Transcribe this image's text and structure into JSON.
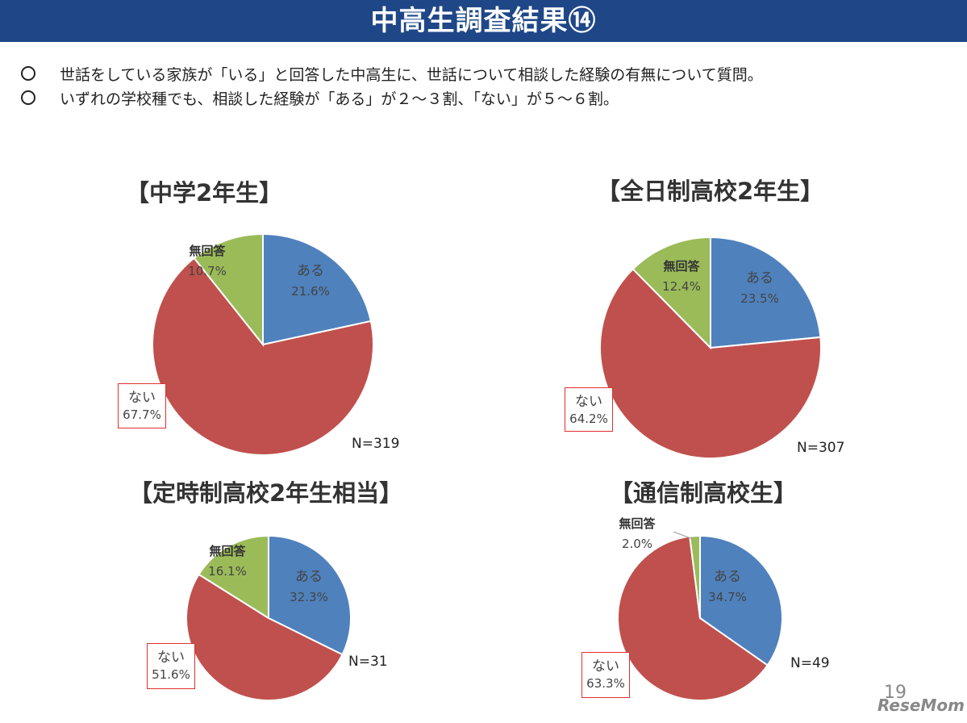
{
  "header": {
    "title": "中高生調査結果⑭"
  },
  "bullets": [
    "世話をしている家族が「いる」と回答した中高生に、世話について相談した経験の有無について質問。",
    "いずれの学校種でも、相談した経験が「ある」が２～３割、「ない」が５～６割。"
  ],
  "colors": {
    "aru": "#4f81bd",
    "nai": "#c0504d",
    "mukaitou": "#9bbb59",
    "header": "#1f4788",
    "highlight": "#e0302f"
  },
  "chart_data": [
    {
      "type": "pie",
      "title": "【中学2年生】",
      "n_label": "N=319",
      "series": [
        {
          "name": "ある",
          "value": 21.6,
          "label": "21.6%"
        },
        {
          "name": "ない",
          "value": 67.7,
          "label": "67.7%"
        },
        {
          "name": "無回答",
          "value": 10.7,
          "label": "10.7%"
        }
      ]
    },
    {
      "type": "pie",
      "title": "【全日制高校2年生】",
      "n_label": "N=307",
      "series": [
        {
          "name": "ある",
          "value": 23.5,
          "label": "23.5%"
        },
        {
          "name": "ない",
          "value": 64.2,
          "label": "64.2%"
        },
        {
          "name": "無回答",
          "value": 12.4,
          "label": "12.4%"
        }
      ]
    },
    {
      "type": "pie",
      "title": "【定時制高校2年生相当】",
      "n_label": "N=31",
      "series": [
        {
          "name": "ある",
          "value": 32.3,
          "label": "32.3%"
        },
        {
          "name": "ない",
          "value": 51.6,
          "label": "51.6%"
        },
        {
          "name": "無回答",
          "value": 16.1,
          "label": "16.1%"
        }
      ]
    },
    {
      "type": "pie",
      "title": "【通信制高校生】",
      "n_label": "N=49",
      "series": [
        {
          "name": "ある",
          "value": 34.7,
          "label": "34.7%"
        },
        {
          "name": "ない",
          "value": 63.3,
          "label": "63.3%"
        },
        {
          "name": "無回答",
          "value": 2.0,
          "label": "2.0%"
        }
      ]
    }
  ],
  "footer": {
    "page_number": "19",
    "logo_text": "ReseMom"
  }
}
